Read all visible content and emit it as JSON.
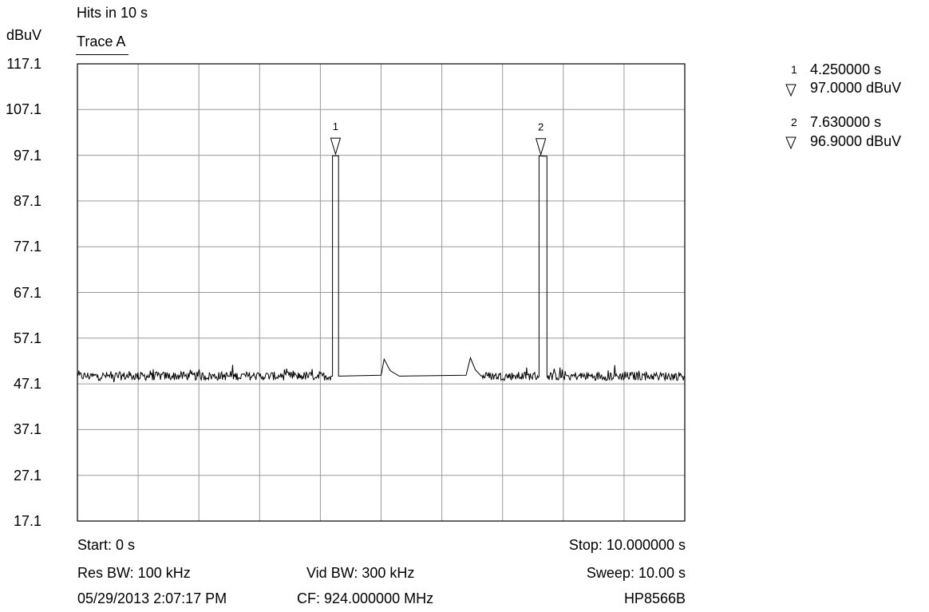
{
  "header": {
    "title": "Hits in 10 s",
    "unit": "dBuV",
    "trace": "Trace A"
  },
  "footer": {
    "start": "Start: 0 s",
    "stop": "Stop: 10.000000 s",
    "res_bw": "Res BW: 100 kHz",
    "vid_bw": "Vid BW: 300 kHz",
    "sweep": "Sweep: 10.00 s",
    "datetime": "05/29/2013 2:07:17 PM",
    "cf": "CF: 924.000000 MHz",
    "model": "HP8566B"
  },
  "markers": [
    {
      "index": "1",
      "time": "4.250000 s",
      "level": "97.0000 dBuV"
    },
    {
      "index": "2",
      "time": "7.630000 s",
      "level": "96.9000 dBuV"
    }
  ],
  "chart_data": {
    "type": "line",
    "title": "Hits in 10 s",
    "xlabel": "",
    "ylabel": "dBuV",
    "xlim": [
      0,
      10
    ],
    "ylim": [
      17.1,
      117.1
    ],
    "grid": true,
    "x_divisions": 10,
    "y_ticks": [
      "117.1",
      "107.1",
      "97.1",
      "87.1",
      "77.1",
      "67.1",
      "57.1",
      "47.1",
      "37.1",
      "27.1",
      "17.1"
    ],
    "noise_floor": 48.8,
    "series": [
      {
        "points": [
          [
            0,
            48.8
          ],
          [
            4.2,
            48.8
          ],
          [
            4.2,
            97.0
          ],
          [
            4.3,
            97.0
          ],
          [
            4.3,
            48.8
          ],
          [
            5.0,
            49.0
          ],
          [
            5.05,
            52.5
          ],
          [
            5.15,
            50.0
          ],
          [
            5.3,
            48.8
          ],
          [
            6.4,
            49.0
          ],
          [
            6.47,
            52.8
          ],
          [
            6.55,
            50.2
          ],
          [
            6.65,
            48.8
          ],
          [
            7.6,
            48.8
          ],
          [
            7.6,
            97.0
          ],
          [
            7.68,
            96.9
          ],
          [
            7.73,
            96.9
          ],
          [
            7.73,
            48.8
          ],
          [
            10.0,
            48.8
          ]
        ]
      }
    ],
    "markers": [
      {
        "label": "1",
        "x": 4.25,
        "y": 97.0
      },
      {
        "label": "2",
        "x": 7.63,
        "y": 96.9
      }
    ]
  }
}
